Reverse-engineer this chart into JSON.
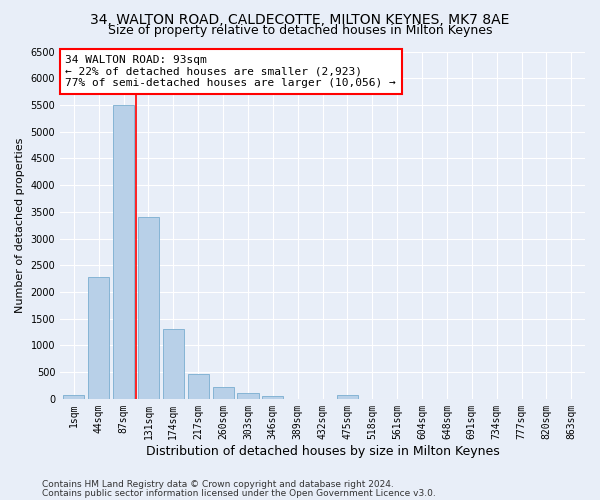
{
  "title": "34, WALTON ROAD, CALDECOTTE, MILTON KEYNES, MK7 8AE",
  "subtitle": "Size of property relative to detached houses in Milton Keynes",
  "xlabel": "Distribution of detached houses by size in Milton Keynes",
  "ylabel": "Number of detached properties",
  "bar_color": "#b8d0e8",
  "bar_edge_color": "#7aaed0",
  "background_color": "#e8eef8",
  "grid_color": "white",
  "categories": [
    "1sqm",
    "44sqm",
    "87sqm",
    "131sqm",
    "174sqm",
    "217sqm",
    "260sqm",
    "303sqm",
    "346sqm",
    "389sqm",
    "432sqm",
    "475sqm",
    "518sqm",
    "561sqm",
    "604sqm",
    "648sqm",
    "691sqm",
    "734sqm",
    "777sqm",
    "820sqm",
    "863sqm"
  ],
  "values": [
    70,
    2280,
    5500,
    3400,
    1310,
    470,
    220,
    110,
    60,
    0,
    0,
    65,
    0,
    0,
    0,
    0,
    0,
    0,
    0,
    0,
    0
  ],
  "ylim": [
    0,
    6500
  ],
  "yticks": [
    0,
    500,
    1000,
    1500,
    2000,
    2500,
    3000,
    3500,
    4000,
    4500,
    5000,
    5500,
    6000,
    6500
  ],
  "annotation_title": "34 WALTON ROAD: 93sqm",
  "annotation_line1": "← 22% of detached houses are smaller (2,923)",
  "annotation_line2": "77% of semi-detached houses are larger (10,056) →",
  "annotation_box_facecolor": "white",
  "annotation_box_edgecolor": "red",
  "property_line_x": 2.5,
  "footer_line1": "Contains HM Land Registry data © Crown copyright and database right 2024.",
  "footer_line2": "Contains public sector information licensed under the Open Government Licence v3.0.",
  "title_fontsize": 10,
  "subtitle_fontsize": 9,
  "xlabel_fontsize": 9,
  "ylabel_fontsize": 8,
  "tick_fontsize": 7,
  "annotation_fontsize": 8,
  "footer_fontsize": 6.5
}
